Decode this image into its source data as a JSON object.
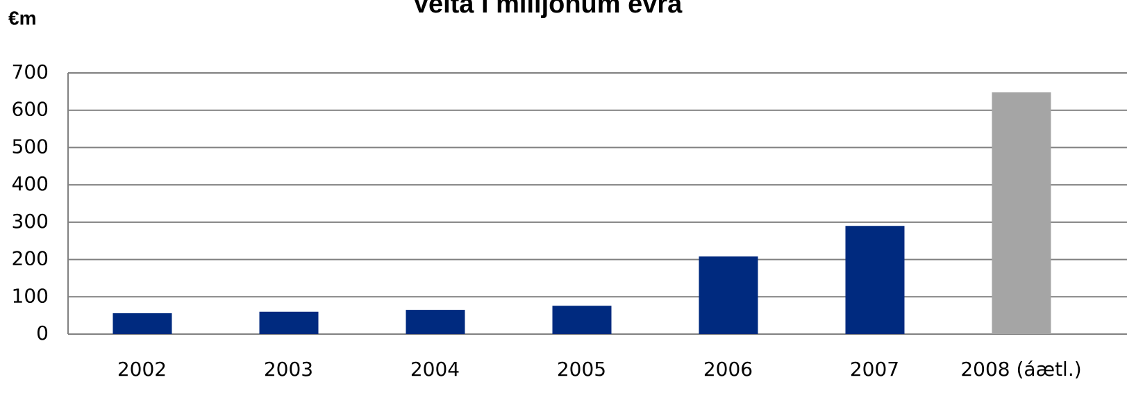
{
  "chart_data": {
    "type": "bar",
    "title": "Velta í milljónum evra",
    "y_label": "€m",
    "categories": [
      "2002",
      "2003",
      "2004",
      "2005",
      "2006",
      "2007",
      "2008 (áætl.)"
    ],
    "values": [
      56,
      60,
      65,
      76,
      208,
      290,
      648
    ],
    "colors": [
      "#002a7f",
      "#002a7f",
      "#002a7f",
      "#002a7f",
      "#002a7f",
      "#002a7f",
      "#a5a5a5"
    ],
    "ylim": [
      0,
      700
    ],
    "yticks": [
      0,
      100,
      200,
      300,
      400,
      500,
      600,
      700
    ],
    "grid": true
  }
}
